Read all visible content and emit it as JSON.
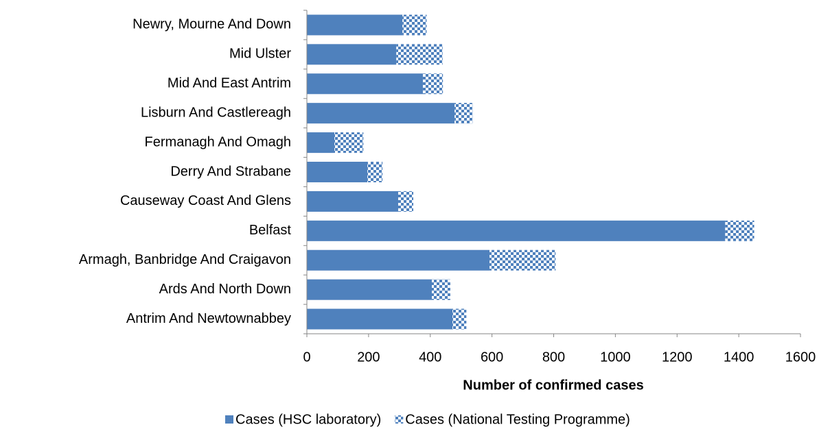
{
  "chart_data": {
    "type": "stacked-barh",
    "xlabel": "Number of confirmed cases",
    "categories": [
      "Newry, Mourne And Down",
      "Mid Ulster",
      "Mid And East Antrim",
      "Lisburn And Castlereagh",
      "Fermanagh And Omagh",
      "Derry And Strabane",
      "Causeway Coast And Glens",
      "Belfast",
      "Armagh, Banbridge And Craigavon",
      "Ards And North Down",
      "Antrim And Newtownabbey"
    ],
    "series": [
      {
        "name": "Cases (HSC laboratory)",
        "color": "#4f81bd",
        "pattern": "solid",
        "values": [
          310,
          290,
          376,
          479,
          89,
          196,
          296,
          1356,
          592,
          405,
          472
        ]
      },
      {
        "name": "Cases (National Testing Programme)",
        "color": "#4f81bd",
        "pattern": "checker",
        "values": [
          78,
          150,
          65,
          58,
          94,
          49,
          49,
          94,
          214,
          60,
          45
        ]
      }
    ],
    "xlim": [
      0,
      1600
    ],
    "xticks": [
      0,
      200,
      400,
      600,
      800,
      1000,
      1200,
      1400,
      1600
    ],
    "legend": "bottom"
  }
}
